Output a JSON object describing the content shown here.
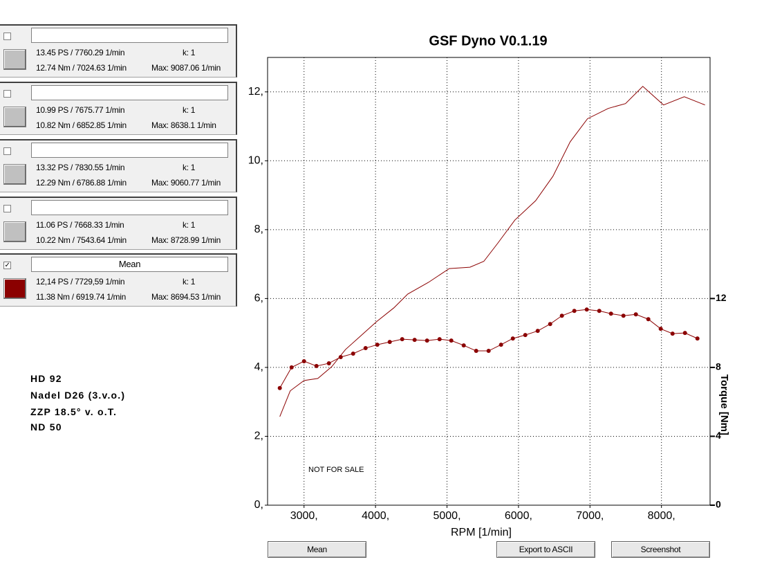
{
  "panels": [
    {
      "checked": false,
      "color": "#c0c0c0",
      "ps": "13.45 PS / 7760.29 1/min",
      "nm": "12.74 Nm / 7024.63 1/min",
      "k": "k: 1",
      "max": "Max: 9087.06 1/min"
    },
    {
      "checked": false,
      "color": "#c0c0c0",
      "ps": "10.99 PS / 7675.77 1/min",
      "nm": "10.82 Nm / 6852.85 1/min",
      "k": "k: 1",
      "max": "Max: 8638.1 1/min"
    },
    {
      "checked": false,
      "color": "#c0c0c0",
      "ps": "13.32 PS / 7830.55 1/min",
      "nm": "12.29 Nm / 6786.88 1/min",
      "k": "k: 1",
      "max": "Max: 9060.77 1/min"
    },
    {
      "checked": false,
      "color": "#c0c0c0",
      "ps": "11.06 PS / 7668.33 1/min",
      "nm": "10.22 Nm / 7543.64 1/min",
      "k": "k: 1",
      "max": "Max: 8728.99 1/min"
    },
    {
      "checked": true,
      "title": "Mean",
      "color": "#8b0000",
      "ps": "12,14 PS / 7729,59 1/min",
      "nm": "11.38 Nm / 6919.74 1/min",
      "k": "k: 1",
      "max": "Max: 8694.53 1/min"
    }
  ],
  "notes": [
    "HD 92",
    "Nadel D26 (3.v.o.)",
    "ZZP 18.5° v. o.T.",
    "ND 50"
  ],
  "buttons": [
    "Mean",
    "Export to ASCII",
    "Screenshot"
  ],
  "chart_data": {
    "type": "line",
    "title": "GSF Dyno V0.1.19",
    "x_label": "RPM [1/min]",
    "y2_label": "Torque [Nm]",
    "annotation": "NOT FOR SALE",
    "grid": true,
    "xlim": [
      2490,
      8680
    ],
    "xticks": [
      {
        "value": 3000,
        "label": "3000,"
      },
      {
        "value": 4000,
        "label": "4000,"
      },
      {
        "value": 5000,
        "label": "5000,"
      },
      {
        "value": 6000,
        "label": "6000,"
      },
      {
        "value": 7000,
        "label": "7000,"
      },
      {
        "value": 8000,
        "label": "8000,"
      }
    ],
    "ylim": [
      0,
      13
    ],
    "yticks": [
      {
        "value": 0,
        "label": "0,"
      },
      {
        "value": 2,
        "label": "2,"
      },
      {
        "value": 4,
        "label": "4,"
      },
      {
        "value": 6,
        "label": "6,"
      },
      {
        "value": 8,
        "label": "8,"
      },
      {
        "value": 10,
        "label": "10,"
      },
      {
        "value": 12,
        "label": "12,"
      }
    ],
    "y2lim": [
      0,
      26
    ],
    "y2ticks": [
      0,
      4,
      8,
      12
    ],
    "series": [
      {
        "color": "#8b0000",
        "markers": false,
        "x": [
          2661,
          2807,
          3000,
          3193,
          3387,
          3580,
          3774,
          4015,
          4257,
          4451,
          4741,
          5031,
          5321,
          5515,
          5708,
          5950,
          6240,
          6482,
          6723,
          6965,
          7255,
          7497,
          7739,
          8029,
          8319,
          8609
        ],
        "values": [
          2.57,
          3.32,
          3.62,
          3.68,
          4.02,
          4.52,
          4.88,
          5.33,
          5.73,
          6.13,
          6.47,
          6.87,
          6.91,
          7.08,
          7.6,
          8.28,
          8.84,
          9.55,
          10.55,
          11.22,
          11.52,
          11.66,
          12.16,
          11.62,
          11.86,
          11.62
        ]
      },
      {
        "color": "#8b0000",
        "markers": true,
        "axis": "y2",
        "x": [
          2661,
          2826,
          3000,
          3174,
          3348,
          3513,
          3687,
          3861,
          4025,
          4199,
          4373,
          4547,
          4721,
          4896,
          5060,
          5234,
          5408,
          5582,
          5756,
          5921,
          6095,
          6269,
          6443,
          6607,
          6781,
          6955,
          7130,
          7294,
          7468,
          7642,
          7816,
          7990,
          8155,
          8329,
          8503
        ],
        "values": [
          6.8,
          8.0,
          8.36,
          8.08,
          8.24,
          8.6,
          8.8,
          9.12,
          9.32,
          9.48,
          9.64,
          9.6,
          9.56,
          9.64,
          9.56,
          9.28,
          8.96,
          8.96,
          9.32,
          9.68,
          9.88,
          10.12,
          10.52,
          11.0,
          11.28,
          11.36,
          11.28,
          11.12,
          11.0,
          11.08,
          10.8,
          10.24,
          9.96,
          10.0,
          9.68
        ]
      }
    ]
  }
}
